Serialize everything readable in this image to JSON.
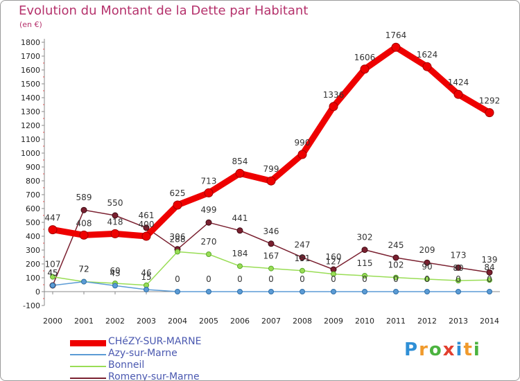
{
  "header": {
    "title": "Evolution du Montant de la Dette par Habitant",
    "subtitle": "(en €)"
  },
  "logo": {
    "text": "Proxiti",
    "colors": [
      "#2f8fd6",
      "#f09a2c",
      "#4bb33f",
      "#e23f2e",
      "#2f8fd6",
      "#f09a2c",
      "#4bb33f"
    ]
  },
  "chart_data": {
    "type": "line",
    "x": [
      "2000",
      "2001",
      "2002",
      "2003",
      "2004",
      "2005",
      "2006",
      "2007",
      "2008",
      "2009",
      "2010",
      "2011",
      "2012",
      "2013",
      "2014"
    ],
    "ylim": [
      -100,
      1800
    ],
    "yticks": [
      "-100",
      "0",
      "100",
      "200",
      "300",
      "400",
      "500",
      "600",
      "700",
      "800",
      "900",
      "1000",
      "1100",
      "1200",
      "1300",
      "1400",
      "1500",
      "1600",
      "1700",
      "1800"
    ],
    "grid": false,
    "legend_position": "bottom-left",
    "series": [
      {
        "name": "CHéZY-SUR-MARNE",
        "color": "#ee0000",
        "values": [
          447,
          408,
          418,
          400,
          625,
          713,
          854,
          799,
          990,
          1336,
          1606,
          1764,
          1624,
          1424,
          1292
        ],
        "labels": [
          "447",
          "408",
          "418",
          "400",
          "625",
          "713",
          "854",
          "799",
          "990",
          "1336",
          "1606",
          "1764",
          "1624",
          "1424",
          "1292"
        ]
      },
      {
        "name": "Azy-sur-Marne",
        "color": "#5b9bd5",
        "values": [
          45,
          72,
          43,
          15,
          0,
          0,
          0,
          0,
          0,
          0,
          0,
          0,
          0,
          0,
          0
        ],
        "labels": [
          "45",
          "72",
          "43",
          "15",
          "0",
          "0",
          "0",
          "0",
          "0",
          "0",
          "0",
          "0",
          "0",
          "0",
          "0"
        ]
      },
      {
        "name": "Bonneil",
        "color": "#99dd55",
        "values": [
          107,
          72,
          60,
          46,
          288,
          270,
          184,
          167,
          151,
          127,
          115,
          102,
          90,
          80,
          84
        ],
        "labels": [
          "107",
          "72",
          "60",
          "46",
          "288",
          "270",
          "184",
          "167",
          "151",
          "127",
          "115",
          "102",
          "90",
          "80",
          "84"
        ]
      },
      {
        "name": "Romeny-sur-Marne",
        "color": "#7a2030",
        "values": [
          45,
          589,
          550,
          461,
          306,
          499,
          441,
          346,
          247,
          160,
          302,
          245,
          209,
          173,
          139
        ],
        "labels": [
          "45",
          "589",
          "550",
          "461",
          "306",
          "499",
          "441",
          "346",
          "247",
          "160",
          "302",
          "245",
          "209",
          "173",
          "139"
        ]
      }
    ]
  }
}
